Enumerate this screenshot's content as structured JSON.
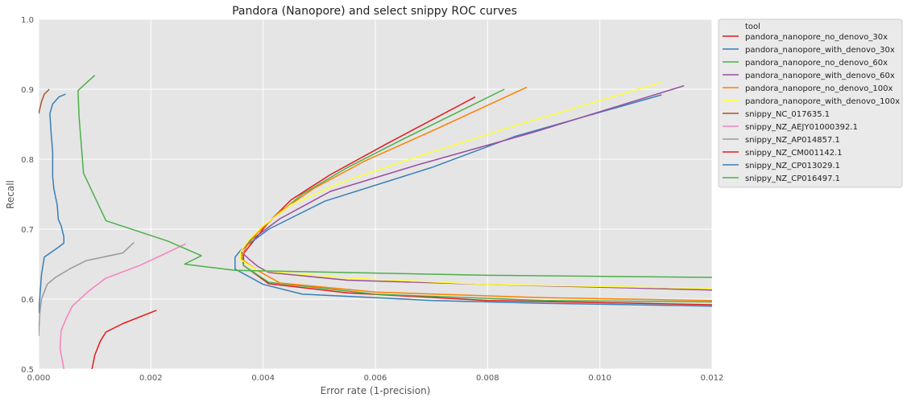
{
  "chart_data": {
    "type": "line",
    "title": "Pandora (Nanopore) and select snippy ROC curves",
    "xlabel": "Error rate (1-precision)",
    "ylabel": "Recall",
    "xlim": [
      0,
      0.012
    ],
    "ylim": [
      0.5,
      1.0
    ],
    "xticks": [
      "0.000",
      "0.002",
      "0.004",
      "0.006",
      "0.008",
      "0.010",
      "0.012"
    ],
    "yticks": [
      "0.5",
      "0.6",
      "0.7",
      "0.8",
      "0.9",
      "1.0"
    ],
    "grid": true,
    "legend_title": "tool",
    "legend_placement": "outside-top-right",
    "series": [
      {
        "name": "pandora_nanopore_no_denovo_30x",
        "color": "#e41a1c",
        "points": [
          [
            0.00778,
            0.889
          ],
          [
            0.0062,
            0.822
          ],
          [
            0.0052,
            0.778
          ],
          [
            0.0045,
            0.742
          ],
          [
            0.0041,
            0.71
          ],
          [
            0.0038,
            0.68
          ],
          [
            0.00365,
            0.665
          ],
          [
            0.00365,
            0.648
          ],
          [
            0.0041,
            0.622
          ],
          [
            0.0055,
            0.609
          ],
          [
            0.008,
            0.598
          ],
          [
            0.012,
            0.592
          ]
        ]
      },
      {
        "name": "pandora_nanopore_with_denovo_30x",
        "color": "#377eb8",
        "points": [
          [
            0.0111,
            0.892
          ],
          [
            0.0085,
            0.833
          ],
          [
            0.007,
            0.788
          ],
          [
            0.0051,
            0.74
          ],
          [
            0.0041,
            0.7
          ],
          [
            0.0036,
            0.67
          ],
          [
            0.0035,
            0.66
          ],
          [
            0.0035,
            0.643
          ],
          [
            0.004,
            0.621
          ],
          [
            0.0047,
            0.607
          ],
          [
            0.007,
            0.598
          ],
          [
            0.009,
            0.594
          ],
          [
            0.012,
            0.59
          ]
        ]
      },
      {
        "name": "pandora_nanopore_no_denovo_60x",
        "color": "#4daf4a",
        "points": [
          [
            0.0083,
            0.9
          ],
          [
            0.0065,
            0.829
          ],
          [
            0.0055,
            0.788
          ],
          [
            0.0047,
            0.75
          ],
          [
            0.0042,
            0.717
          ],
          [
            0.0038,
            0.688
          ],
          [
            0.0036,
            0.668
          ],
          [
            0.00365,
            0.648
          ],
          [
            0.0041,
            0.624
          ],
          [
            0.006,
            0.607
          ],
          [
            0.009,
            0.598
          ],
          [
            0.012,
            0.596
          ]
        ]
      },
      {
        "name": "pandora_nanopore_with_denovo_60x",
        "color": "#984ea3",
        "points": [
          [
            0.0115,
            0.905
          ],
          [
            0.0088,
            0.838
          ],
          [
            0.0068,
            0.793
          ],
          [
            0.0052,
            0.754
          ],
          [
            0.0043,
            0.715
          ],
          [
            0.0038,
            0.685
          ],
          [
            0.0036,
            0.668
          ],
          [
            0.00375,
            0.657
          ],
          [
            0.0039,
            0.647
          ],
          [
            0.0041,
            0.638
          ],
          [
            0.0055,
            0.627
          ],
          [
            0.008,
            0.621
          ],
          [
            0.012,
            0.613
          ]
        ]
      },
      {
        "name": "pandora_nanopore_no_denovo_100x",
        "color": "#ff7f00",
        "points": [
          [
            0.0087,
            0.903
          ],
          [
            0.007,
            0.84
          ],
          [
            0.0058,
            0.797
          ],
          [
            0.0049,
            0.758
          ],
          [
            0.0043,
            0.725
          ],
          [
            0.0039,
            0.695
          ],
          [
            0.0037,
            0.675
          ],
          [
            0.0036,
            0.658
          ],
          [
            0.0039,
            0.641
          ],
          [
            0.0043,
            0.623
          ],
          [
            0.006,
            0.61
          ],
          [
            0.009,
            0.602
          ],
          [
            0.012,
            0.598
          ]
        ]
      },
      {
        "name": "pandora_nanopore_with_denovo_100x",
        "color": "#ffff33",
        "points": [
          [
            0.0111,
            0.91
          ],
          [
            0.0085,
            0.848
          ],
          [
            0.0068,
            0.805
          ],
          [
            0.0054,
            0.767
          ],
          [
            0.0045,
            0.735
          ],
          [
            0.004,
            0.705
          ],
          [
            0.00375,
            0.685
          ],
          [
            0.0036,
            0.668
          ],
          [
            0.0036,
            0.656
          ],
          [
            0.0039,
            0.641
          ],
          [
            0.0055,
            0.63
          ],
          [
            0.008,
            0.621
          ],
          [
            0.012,
            0.615
          ]
        ]
      },
      {
        "name": "snippy_NC_017635.1",
        "color": "#a65628",
        "points": [
          [
            0.00019,
            0.9
          ],
          [
            0.0001,
            0.893
          ],
          [
            5e-05,
            0.882
          ],
          [
            2e-05,
            0.872
          ],
          [
            0.0,
            0.865
          ]
        ]
      },
      {
        "name": "snippy_NZ_AEJY01000392.1",
        "color": "#f781bf",
        "points": [
          [
            0.00262,
            0.679
          ],
          [
            0.0022,
            0.663
          ],
          [
            0.0018,
            0.648
          ],
          [
            0.0012,
            0.63
          ],
          [
            0.0009,
            0.612
          ],
          [
            0.0006,
            0.59
          ],
          [
            0.0005,
            0.574
          ],
          [
            0.0004,
            0.555
          ],
          [
            0.00038,
            0.53
          ],
          [
            0.00045,
            0.5
          ]
        ]
      },
      {
        "name": "snippy_NZ_AP014857.1",
        "color": "#999999",
        "points": [
          [
            0.0017,
            0.681
          ],
          [
            0.0015,
            0.666
          ],
          [
            0.00085,
            0.655
          ],
          [
            0.00055,
            0.643
          ],
          [
            0.0003,
            0.631
          ],
          [
            0.00015,
            0.621
          ],
          [
            5e-05,
            0.6
          ],
          [
            2e-05,
            0.58
          ],
          [
            0.0,
            0.547
          ]
        ]
      },
      {
        "name": "snippy_NZ_CM001142.1",
        "color": "#e41a1c",
        "points": [
          [
            0.0021,
            0.584
          ],
          [
            0.0015,
            0.565
          ],
          [
            0.0012,
            0.553
          ],
          [
            0.0011,
            0.54
          ],
          [
            0.001,
            0.52
          ],
          [
            0.00095,
            0.5
          ]
        ]
      },
      {
        "name": "snippy_NZ_CP013029.1",
        "color": "#377eb8",
        "points": [
          [
            0.00048,
            0.893
          ],
          [
            0.00036,
            0.889
          ],
          [
            0.00025,
            0.879
          ],
          [
            0.0002,
            0.865
          ],
          [
            0.00022,
            0.84
          ],
          [
            0.00025,
            0.81
          ],
          [
            0.00025,
            0.775
          ],
          [
            0.00027,
            0.758
          ],
          [
            0.00033,
            0.735
          ],
          [
            0.00035,
            0.714
          ],
          [
            0.0004,
            0.705
          ],
          [
            0.00045,
            0.689
          ],
          [
            0.00045,
            0.68
          ],
          [
            0.00035,
            0.674
          ],
          [
            0.0001,
            0.66
          ],
          [
            5e-05,
            0.635
          ],
          [
            0.0,
            0.58
          ]
        ]
      },
      {
        "name": "snippy_NZ_CP016497.1",
        "color": "#4daf4a",
        "points": [
          [
            0.001,
            0.92
          ],
          [
            0.0007,
            0.898
          ],
          [
            0.00072,
            0.86
          ],
          [
            0.0008,
            0.78
          ],
          [
            0.0012,
            0.712
          ],
          [
            0.0023,
            0.683
          ],
          [
            0.0029,
            0.662
          ],
          [
            0.0026,
            0.65
          ],
          [
            0.0035,
            0.641
          ],
          [
            0.008,
            0.634
          ],
          [
            0.012,
            0.631
          ]
        ]
      }
    ]
  }
}
